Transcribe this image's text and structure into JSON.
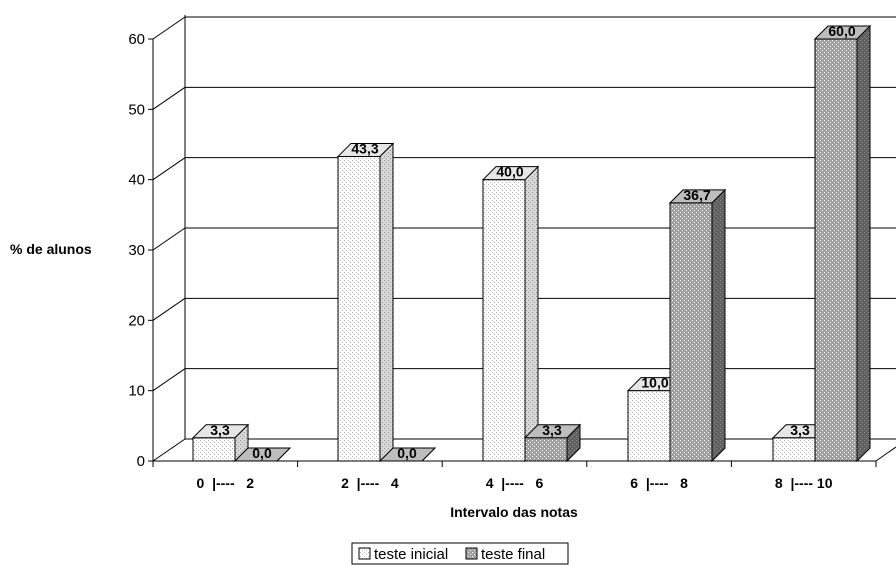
{
  "chart_data": {
    "type": "bar",
    "title": "",
    "xlabel": "Intervalo das notas",
    "ylabel": "% de alunos",
    "categories": [
      "0  |----   2",
      "2  |----   4",
      "4  |----   6",
      "6  |----   8",
      "8  |---- 10"
    ],
    "series": [
      {
        "name": "teste inicial",
        "values": [
          3.3,
          43.3,
          40.0,
          10.0,
          3.3
        ],
        "labels": [
          "3,3",
          "43,3",
          "40,0",
          "10,0",
          "3,3"
        ]
      },
      {
        "name": "teste final",
        "values": [
          0.0,
          0.0,
          3.3,
          36.7,
          60.0
        ],
        "labels": [
          "0,0",
          "0,0",
          "3,3",
          "36,7",
          "60,0"
        ]
      }
    ],
    "yticks": [
      0,
      10,
      20,
      30,
      40,
      50,
      60
    ],
    "ylim": [
      0,
      60
    ],
    "grid": true,
    "legend_position": "bottom",
    "colors": {
      "teste inicial": "#f2f2f2",
      "teste final": "#9a9a9a"
    }
  }
}
